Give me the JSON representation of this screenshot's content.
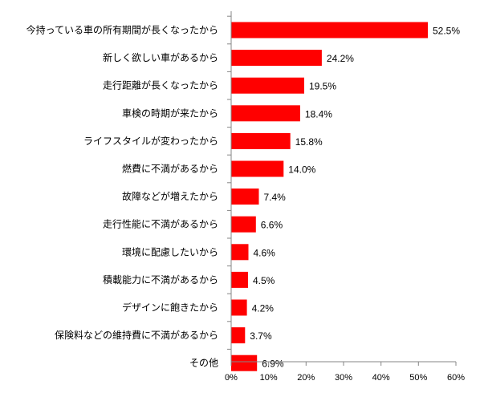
{
  "chart_data": {
    "type": "bar",
    "orientation": "horizontal",
    "categories": [
      "今持っている車の所有期間が長くなったから",
      "新しく欲しい車があるから",
      "走行距離が長くなったから",
      "車検の時期が来たから",
      "ライフスタイルが変わったから",
      "燃費に不満があるから",
      "故障などが増えたから",
      "走行性能に不満があるから",
      "環境に配慮したいから",
      "積載能力に不満があるから",
      "デザインに飽きたから",
      "保険料などの維持費に不満があるから",
      "その他"
    ],
    "values": [
      52.5,
      24.2,
      19.5,
      18.4,
      15.8,
      14.0,
      7.4,
      6.6,
      4.6,
      4.5,
      4.2,
      3.7,
      6.9
    ],
    "value_labels": [
      "52.5%",
      "24.2%",
      "19.5%",
      "18.4%",
      "15.8%",
      "14.0%",
      "7.4%",
      "6.6%",
      "4.6%",
      "4.5%",
      "4.2%",
      "3.7%",
      "6.9%"
    ],
    "xlim": [
      0,
      60
    ],
    "xticks": [
      0,
      10,
      20,
      30,
      40,
      50,
      60
    ],
    "xtick_labels": [
      "0%",
      "10%",
      "20%",
      "30%",
      "40%",
      "50%",
      "60%"
    ],
    "bar_color": "#FF0000",
    "grid": false,
    "legend": "none"
  }
}
